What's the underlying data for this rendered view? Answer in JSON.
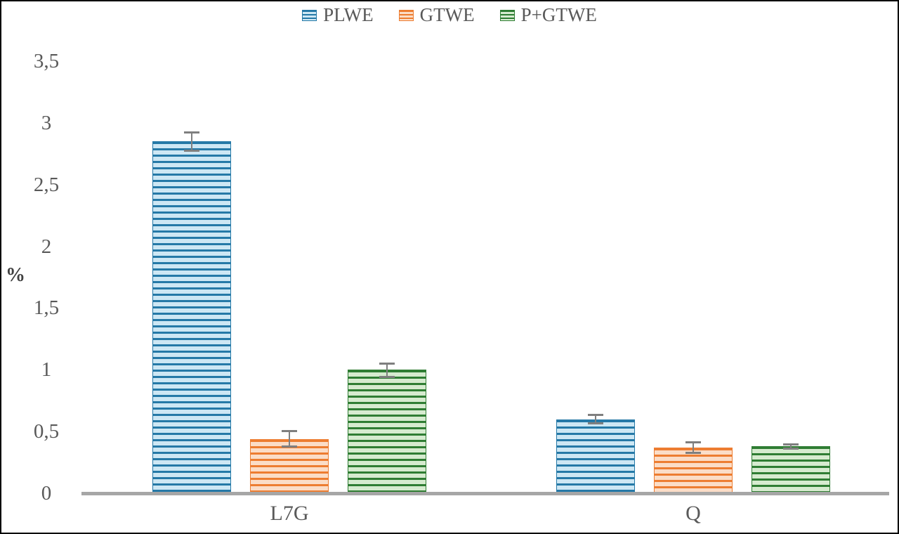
{
  "figure": {
    "background": "#ffffff",
    "border_color": "#000000"
  },
  "colors": {
    "axis_text": "#595959",
    "y_axis_title_text": "#404040",
    "baseline": "#a6a6a6",
    "error_bar": "#7f7f7f"
  },
  "chart_data": {
    "type": "bar",
    "title": "",
    "ylabel": "%",
    "xlabel": "",
    "ylim": [
      0,
      3.5
    ],
    "grid": false,
    "legend_position": "top",
    "decimal_separator": ",",
    "bar_fill_pattern": "horizontal-stripes",
    "categories": [
      "L7G",
      "Q"
    ],
    "yticks": [
      {
        "label": "0",
        "value": 0
      },
      {
        "label": "0,5",
        "value": 0.5
      },
      {
        "label": "1",
        "value": 1
      },
      {
        "label": "1,5",
        "value": 1.5
      },
      {
        "label": "2",
        "value": 2
      },
      {
        "label": "2,5",
        "value": 2.5
      },
      {
        "label": "3",
        "value": 3
      },
      {
        "label": "3,5",
        "value": 3.5
      }
    ],
    "series": [
      {
        "name": "PLWE",
        "color": "#2579a7",
        "light": "#cde7f4",
        "values": [
          2.85,
          0.6
        ],
        "errors": [
          0.07,
          0.03
        ]
      },
      {
        "name": "GTWE",
        "color": "#ed7d31",
        "light": "#fbddc7",
        "values": [
          0.44,
          0.37
        ],
        "errors": [
          0.06,
          0.04
        ]
      },
      {
        "name": "P+GTWE",
        "color": "#2f7d33",
        "light": "#d6ebcf",
        "values": [
          1.0,
          0.38
        ],
        "errors": [
          0.05,
          0.015
        ]
      }
    ]
  }
}
